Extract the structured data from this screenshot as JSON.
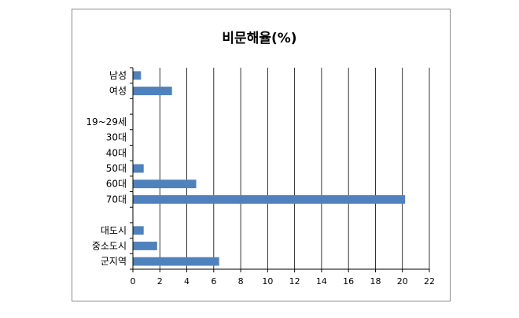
{
  "chart_data": {
    "type": "bar",
    "orientation": "horizontal",
    "title": "비문해율(%)",
    "xlabel": "",
    "ylabel": "",
    "categories": [
      "남성",
      "여성",
      "",
      "19~29세",
      "30대",
      "40대",
      "50대",
      "60대",
      "70대",
      "",
      "대도시",
      "중소도시",
      "군지역"
    ],
    "values": [
      0.6,
      2.9,
      null,
      0,
      0,
      0,
      0.8,
      4.7,
      20.2,
      null,
      0.8,
      1.8,
      6.4
    ],
    "xlim": [
      0,
      22
    ],
    "xticks": [
      0,
      2,
      4,
      6,
      8,
      10,
      12,
      14,
      16,
      18,
      20,
      22
    ],
    "grid": "vertical",
    "legend": "none",
    "bar_color": "#4f81bd"
  }
}
